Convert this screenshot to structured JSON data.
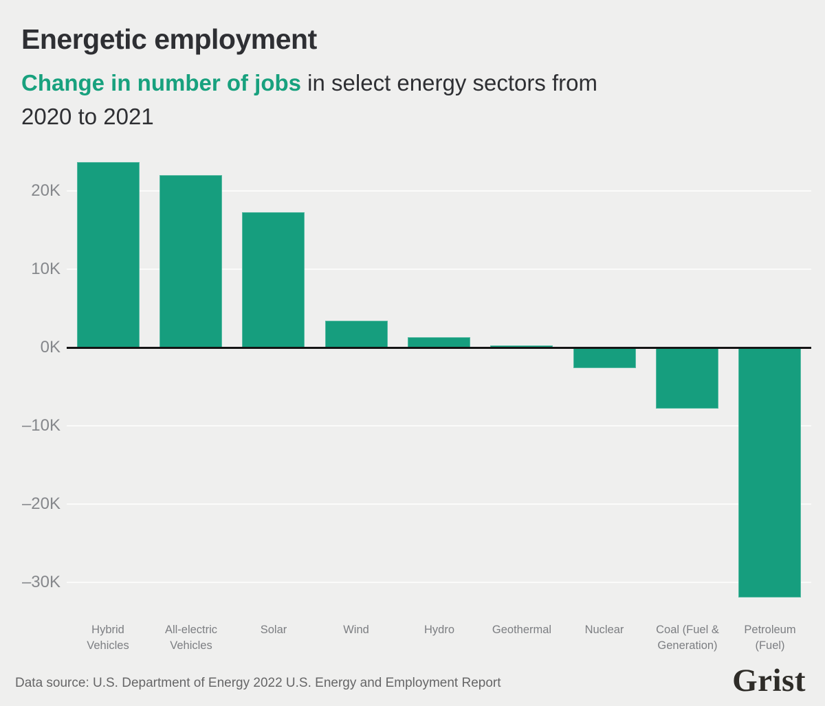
{
  "header": {
    "title": "Energetic employment",
    "subtitle_highlight": "Change in number of jobs",
    "subtitle_rest": " in select energy sectors from",
    "subtitle_line2": "2020 to 2021"
  },
  "chart_data": {
    "type": "bar",
    "title": "Energetic employment",
    "subtitle": "Change in number of jobs in select energy sectors from 2020 to 2021",
    "categories": [
      "Hybrid\nVehicles",
      "All-electric\nVehicles",
      "Solar",
      "Wind",
      "Hydro",
      "Geothermal",
      "Nuclear",
      "Coal (Fuel &\nGeneration)",
      "Petroleum\n(Fuel)"
    ],
    "values": [
      23700,
      22000,
      17300,
      3400,
      1300,
      300,
      -2500,
      -7700,
      -31800
    ],
    "xlabel": "",
    "ylabel": "",
    "ylim": [
      -33500,
      24500
    ],
    "yticks": [
      {
        "value": 20000,
        "label": "20K"
      },
      {
        "value": 10000,
        "label": "10K"
      },
      {
        "value": 0,
        "label": "0K"
      },
      {
        "value": -10000,
        "label": "–10K"
      },
      {
        "value": -20000,
        "label": "–20K"
      },
      {
        "value": -30000,
        "label": "–30K"
      }
    ],
    "grid": true,
    "legend": false,
    "bar_color": "#169e7e"
  },
  "footer": {
    "source": "Data source: U.S. Department of Energy 2022 U.S. Energy and Employment Report",
    "logo_text": "Grist"
  },
  "colors": {
    "background": "#efefee",
    "bar": "#169e7e",
    "subtitle_highlight": "#18a17e",
    "title_text": "#2e2f33",
    "axis_text": "#85878b",
    "zero_line": "#141414"
  }
}
